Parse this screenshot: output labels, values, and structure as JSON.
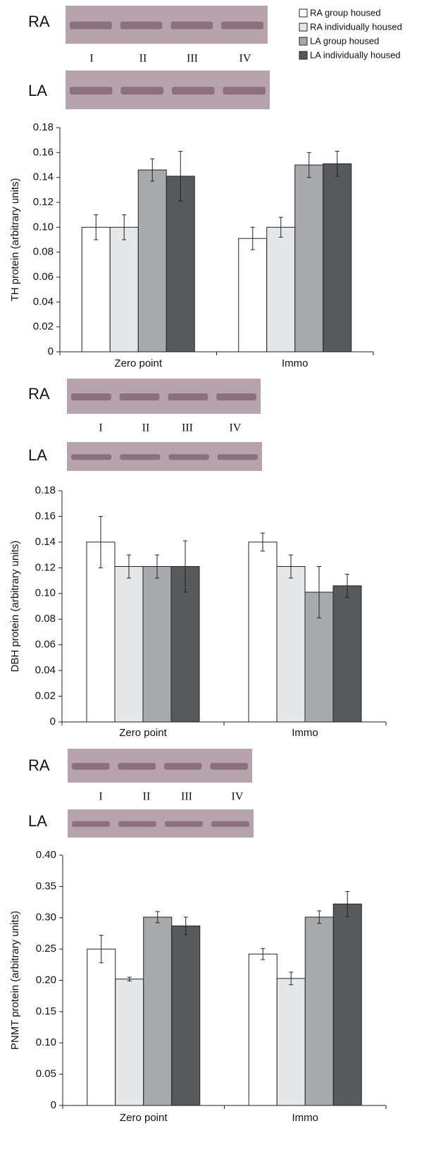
{
  "legend": [
    {
      "name": "RA group housed",
      "color": "#ffffff"
    },
    {
      "name": "RA individually housed",
      "color": "#e6e7e9"
    },
    {
      "name": "LA group housed",
      "color": "#a7a9ac"
    },
    {
      "name": "LA individually housed",
      "color": "#58595b"
    }
  ],
  "chart_data": [
    {
      "type": "bar",
      "ylabel": "TH protein (arbitrary units)",
      "blot": {
        "rows": [
          "RA",
          "LA"
        ],
        "lanes": [
          "I",
          "II",
          "III",
          "IV"
        ]
      },
      "categories": [
        "Zero point",
        "Immo"
      ],
      "series": [
        {
          "values": [
            0.1,
            0.091
          ],
          "errors": [
            0.01,
            0.009
          ]
        },
        {
          "values": [
            0.1,
            0.1
          ],
          "errors": [
            0.01,
            0.008
          ]
        },
        {
          "values": [
            0.146,
            0.15
          ],
          "errors": [
            0.009,
            0.01
          ]
        },
        {
          "values": [
            0.141,
            0.151
          ],
          "errors": [
            0.02,
            0.01
          ]
        }
      ],
      "ylim": [
        0,
        0.18
      ],
      "yticks": [
        0,
        0.02,
        0.04,
        0.06,
        0.08,
        {
          "value": 0.1,
          "label": "0.10"
        },
        0.12,
        0.14,
        0.16,
        0.18
      ]
    },
    {
      "type": "bar",
      "ylabel": "DBH protein (arbitrary units)",
      "blot": {
        "rows": [
          "RA",
          "LA"
        ],
        "lanes": [
          "I",
          "II",
          "III",
          "IV"
        ]
      },
      "categories": [
        "Zero point",
        "Immo"
      ],
      "series": [
        {
          "values": [
            0.14,
            0.14
          ],
          "errors": [
            0.02,
            0.007
          ]
        },
        {
          "values": [
            0.121,
            0.121
          ],
          "errors": [
            0.009,
            0.009
          ]
        },
        {
          "values": [
            0.121,
            0.101
          ],
          "errors": [
            0.009,
            0.02
          ]
        },
        {
          "values": [
            0.121,
            0.106
          ],
          "errors": [
            0.02,
            0.009
          ]
        }
      ],
      "ylim": [
        0,
        0.18
      ],
      "yticks": [
        0,
        0.02,
        0.04,
        0.06,
        0.08,
        {
          "value": 0.1,
          "label": "0.10"
        },
        0.12,
        0.14,
        0.16,
        0.18
      ]
    },
    {
      "type": "bar",
      "ylabel": "PNMT protein (arbitrary units)",
      "blot": {
        "rows": [
          "RA",
          "LA"
        ],
        "lanes": [
          "I",
          "II",
          "III",
          "IV"
        ]
      },
      "categories": [
        "Zero point",
        "Immo"
      ],
      "series": [
        {
          "values": [
            0.25,
            0.242
          ],
          "errors": [
            0.022,
            0.009
          ]
        },
        {
          "values": [
            0.202,
            0.203
          ],
          "errors": [
            0.003,
            0.01
          ]
        },
        {
          "values": [
            0.301,
            0.301
          ],
          "errors": [
            0.009,
            0.01
          ]
        },
        {
          "values": [
            0.287,
            0.322
          ],
          "errors": [
            0.014,
            0.02
          ]
        }
      ],
      "ylim": [
        0,
        0.4
      ],
      "yticks": [
        0,
        0.05,
        {
          "value": 0.1,
          "label": "0.10"
        },
        0.15,
        {
          "value": 0.2,
          "label": "0.20"
        },
        0.25,
        {
          "value": 0.3,
          "label": "0.30"
        },
        0.35,
        {
          "value": 0.4,
          "label": "0.40"
        }
      ]
    }
  ]
}
